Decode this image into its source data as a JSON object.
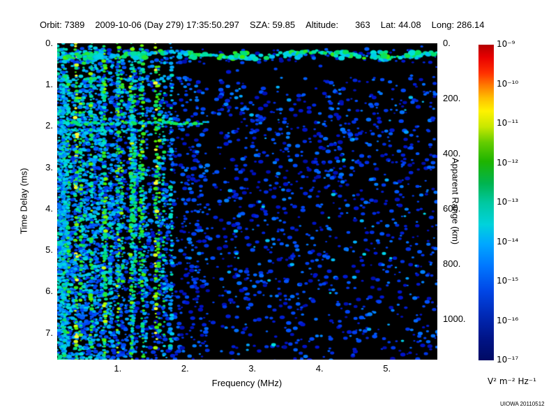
{
  "header": {
    "orbit": "Orbit: 7389",
    "datetime": "2009-10-06 (Day 279) 17:35:50.297",
    "sza": "SZA: 59.85",
    "altitude_label": "Altitude:",
    "altitude_value": "363",
    "lat": "Lat: 44.08",
    "long": "Long: 286.14"
  },
  "footer": {
    "credit": "UIOWA 20110512"
  },
  "chart_data": {
    "type": "heatmap",
    "subtype": "radar-sounder-ionogram-spectrogram",
    "title": "",
    "xlabel": "Frequency (MHz)",
    "ylabel_left": "Time Delay (ms)",
    "ylabel_right": "Apparent Range (km)",
    "grid": false,
    "plot_background": "#000000",
    "x_axis": {
      "min": 0.1,
      "max": 5.75,
      "tick_values": [
        1,
        2,
        3,
        4,
        5
      ],
      "tick_labels": [
        "1.",
        "2.",
        "3.",
        "4.",
        "5."
      ]
    },
    "y_axis_left": {
      "min": 0,
      "max": 7.65,
      "tick_values": [
        0,
        1,
        2,
        3,
        4,
        5,
        6,
        7
      ],
      "tick_labels": [
        "0.",
        "1.",
        "2.",
        "3.",
        "4.",
        "5.",
        "6.",
        "7."
      ]
    },
    "y_axis_right": {
      "min": 0,
      "max": 1147,
      "tick_values": [
        0,
        200,
        400,
        600,
        800,
        1000
      ],
      "tick_labels": [
        "0.",
        "200.",
        "400.",
        "600.",
        "800.",
        "1000."
      ]
    },
    "colorbar": {
      "scale": "log",
      "max_label": "10⁻⁹",
      "min_label": "10⁻¹⁷",
      "tick_labels": [
        "10⁻⁹",
        "10⁻¹⁰",
        "10⁻¹¹",
        "10⁻¹²",
        "10⁻¹³",
        "10⁻¹⁴",
        "10⁻¹⁵",
        "10⁻¹⁶",
        "10⁻¹⁷"
      ],
      "units": "V² m⁻² Hz⁻¹",
      "gradient_stops": [
        {
          "pos": 0,
          "color": "#b40000"
        },
        {
          "pos": 4,
          "color": "#e80000"
        },
        {
          "pos": 9,
          "color": "#ff3000"
        },
        {
          "pos": 13,
          "color": "#ff7c00"
        },
        {
          "pos": 17,
          "color": "#ffc000"
        },
        {
          "pos": 21,
          "color": "#fff200"
        },
        {
          "pos": 26,
          "color": "#c8e800"
        },
        {
          "pos": 31,
          "color": "#64cc00"
        },
        {
          "pos": 37,
          "color": "#1eb400"
        },
        {
          "pos": 44,
          "color": "#00b450"
        },
        {
          "pos": 50,
          "color": "#00c8a0"
        },
        {
          "pos": 57,
          "color": "#00d2dc"
        },
        {
          "pos": 63,
          "color": "#00a8ff"
        },
        {
          "pos": 70,
          "color": "#0078ff"
        },
        {
          "pos": 78,
          "color": "#0046e6"
        },
        {
          "pos": 86,
          "color": "#0028b4"
        },
        {
          "pos": 93,
          "color": "#001488"
        },
        {
          "pos": 100,
          "color": "#000a64"
        }
      ]
    },
    "features": [
      "bright horizontal ionospheric echo trace near 0.3-0.5 ms time delay spanning all frequencies",
      "dense broadband interference and plasma-resonance vertical stripes below ~1.5 MHz, full height of plot",
      "quiet black vertical band near 2.3-2.45 MHz",
      "horizontal harmonic line near 2.1 ms extending to ~2.3 MHz",
      "diffuse sparse blue speckle background above ~2.5 MHz, thinning toward bottom right",
      "dark lane just below the echo trace before diffuse speckle resumes"
    ],
    "render": {
      "seed": 20110512,
      "speckle_palette": [
        [
          0,
          "#000566"
        ],
        [
          0.25,
          "#0013cc"
        ],
        [
          0.45,
          "#0055ff"
        ],
        [
          0.58,
          "#00aaff"
        ],
        [
          0.68,
          "#00e0e0"
        ],
        [
          0.78,
          "#00e070"
        ],
        [
          0.88,
          "#44ee00"
        ],
        [
          0.95,
          "#bbff00"
        ],
        [
          1,
          "#ffff33"
        ]
      ],
      "quiet_band_fx": [
        0.39,
        0.425
      ],
      "echo_trace_fy": 0.037,
      "harmonic_line_fy": 0.252,
      "streaks_fx": [
        0.018,
        0.05,
        0.09,
        0.125,
        0.16,
        0.195,
        0.225,
        0.26,
        0.3
      ]
    }
  }
}
